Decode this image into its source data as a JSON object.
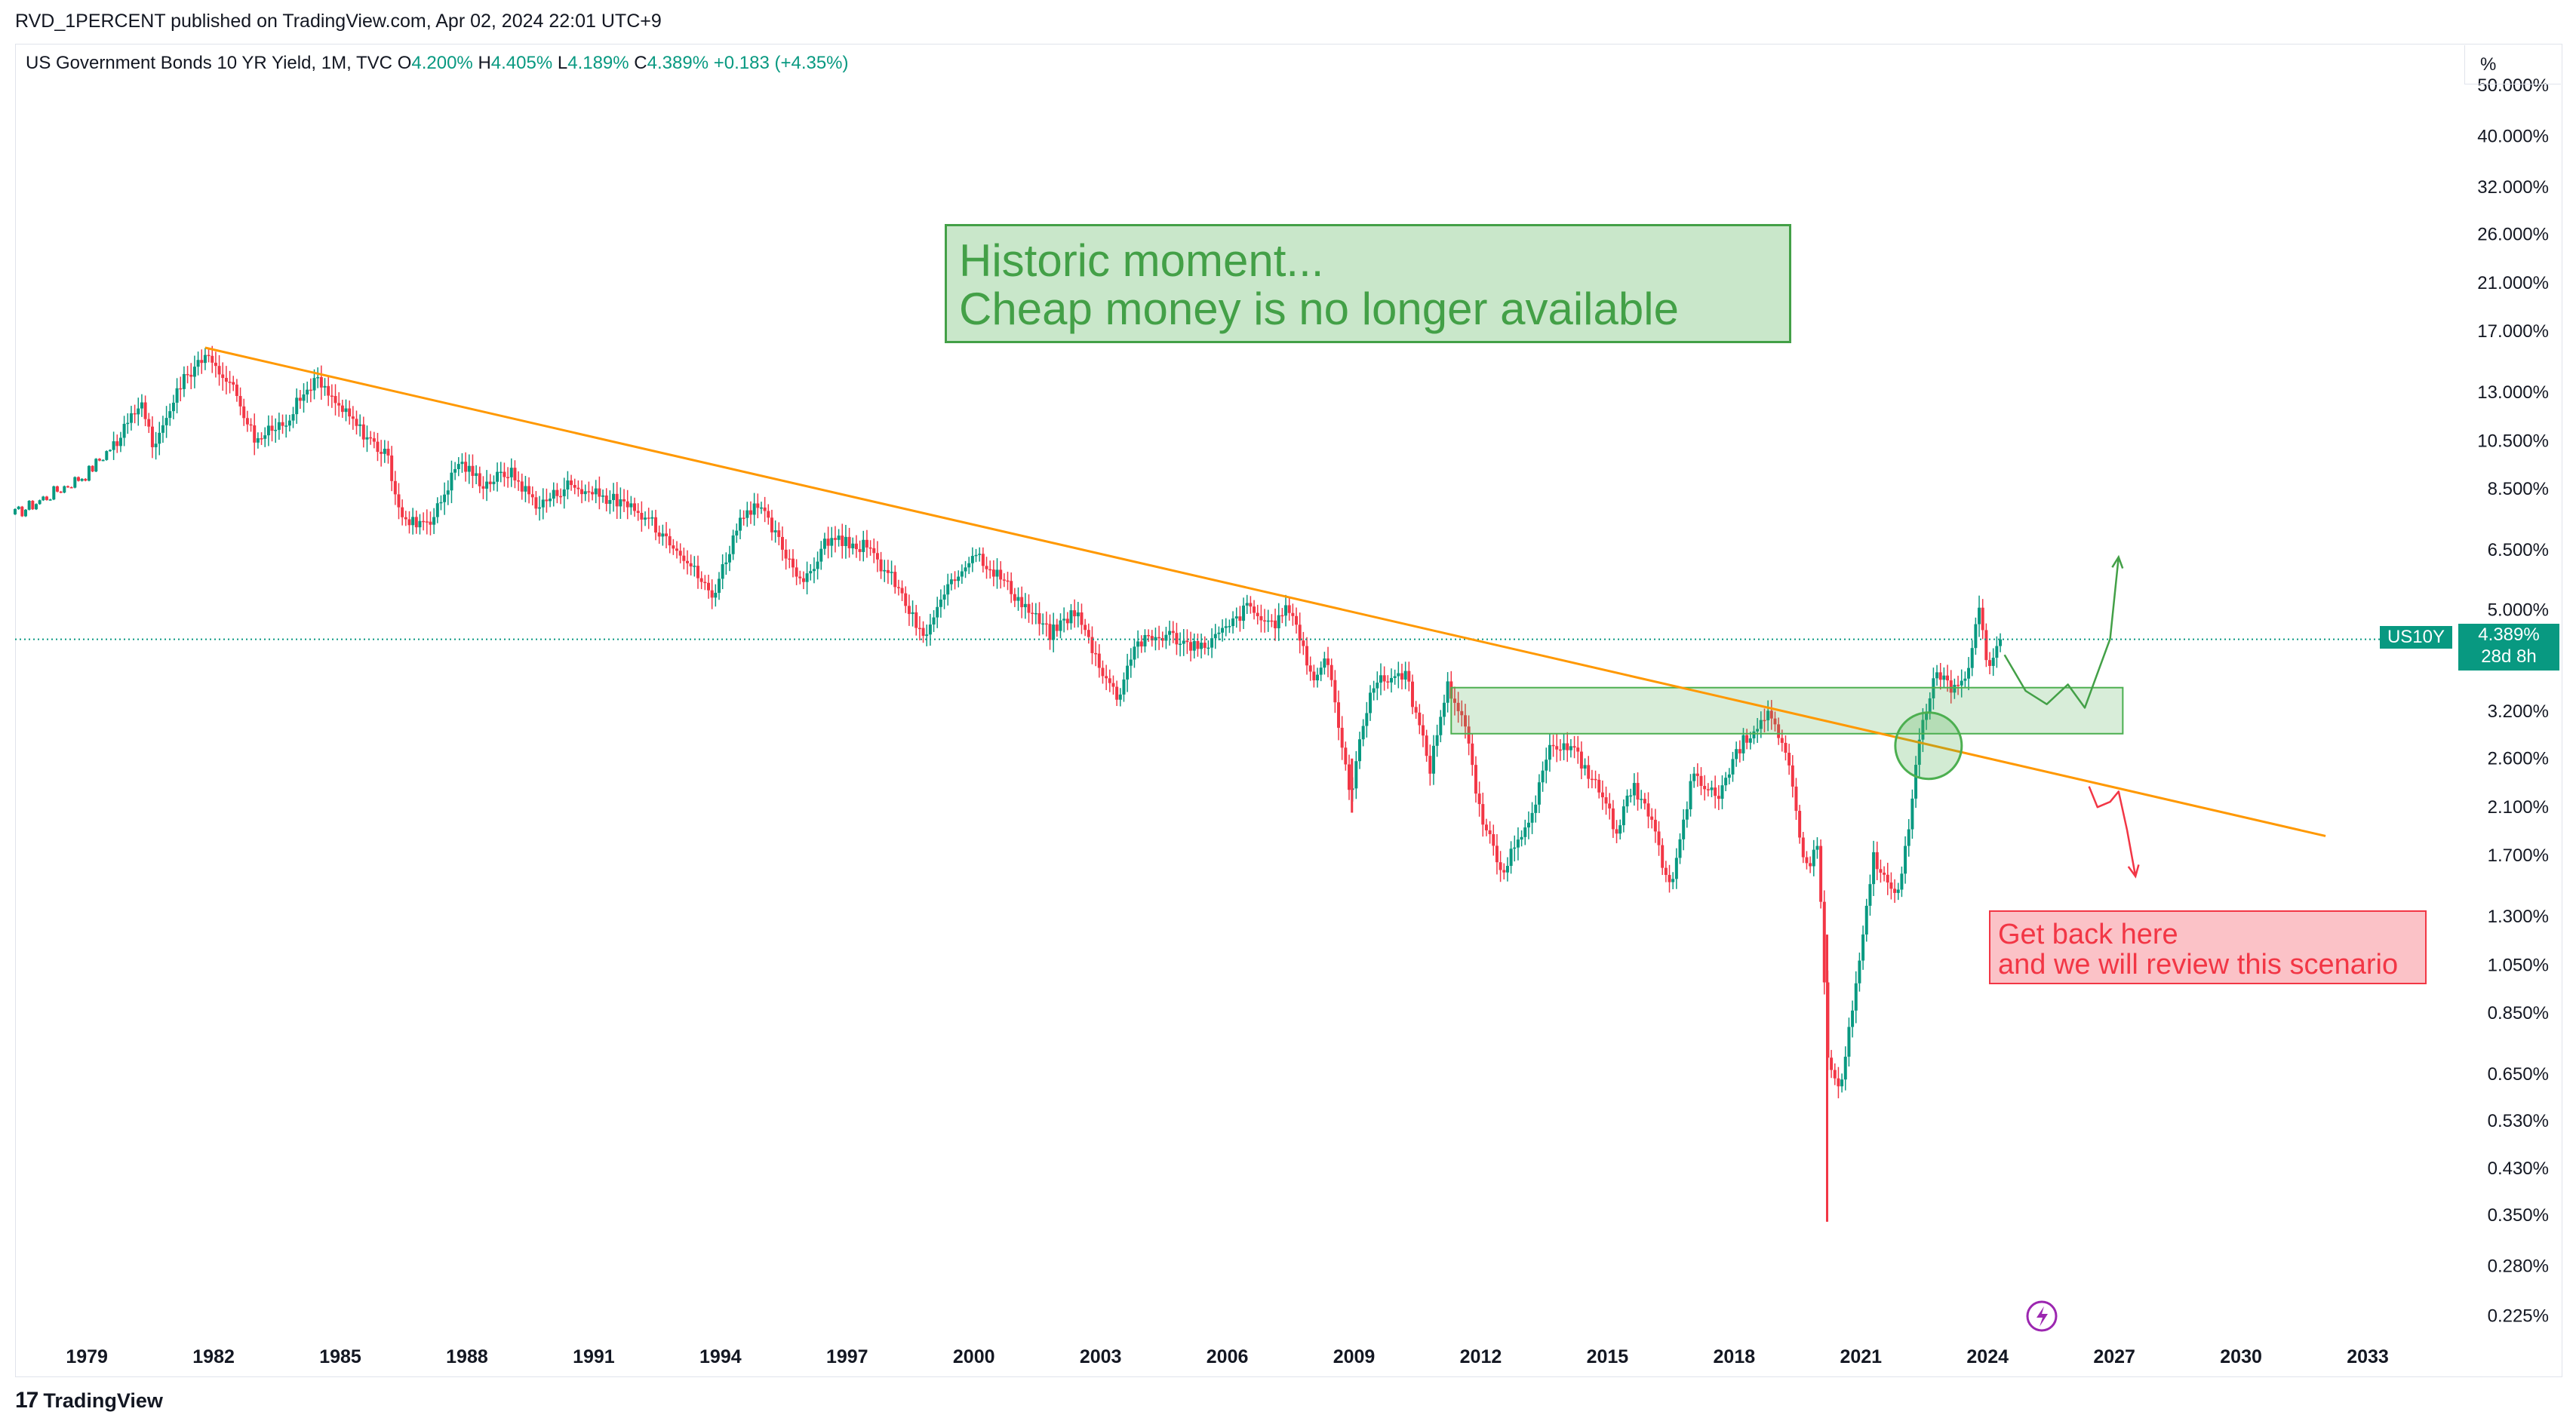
{
  "header": {
    "published_line": "RVD_1PERCENT published on TradingView.com, Apr 02, 2024 22:01 UTC+9"
  },
  "legend": {
    "symbol": "US Government Bonds 10 YR Yield, 1M, TVC",
    "open_key": "O",
    "open": "4.200%",
    "high_key": "H",
    "high": "4.405%",
    "low_key": "L",
    "low": "4.189%",
    "close_key": "C",
    "close": "4.389%",
    "change": "+0.183 (+4.35%)"
  },
  "axis_unit": "%",
  "price_tag": {
    "symbol": "US10Y",
    "value": "4.389%",
    "countdown": "28d 8h"
  },
  "annotations": {
    "green_box_lines": [
      "Historic moment...",
      "Cheap money is no longer available"
    ],
    "red_box_lines": [
      "Get back here",
      "and we will review this scenario"
    ]
  },
  "footer": {
    "brand": "TradingView"
  },
  "colors": {
    "up": "#089981",
    "down": "#f23645",
    "trendline": "#ff9800",
    "zone": "#4caf50",
    "text": "#131722",
    "grid_border": "#e0e3eb",
    "lightning": "#9c27b0"
  },
  "chart_data": {
    "type": "candlestick",
    "title": "US Government Bonds 10 YR Yield, 1M, TVC",
    "y_scale": "log",
    "y_unit": "%",
    "y_ticks": [
      "50.000%",
      "40.000%",
      "32.000%",
      "26.000%",
      "21.000%",
      "17.000%",
      "13.000%",
      "10.500%",
      "8.500%",
      "6.500%",
      "5.000%",
      "3.200%",
      "2.600%",
      "2.100%",
      "1.700%",
      "1.300%",
      "1.050%",
      "0.850%",
      "0.650%",
      "0.530%",
      "0.430%",
      "0.350%",
      "0.280%",
      "0.225%"
    ],
    "x_ticks": [
      "1979",
      "1982",
      "1985",
      "1988",
      "1991",
      "1994",
      "1997",
      "2000",
      "2003",
      "2006",
      "2009",
      "2012",
      "2015",
      "2018",
      "2021",
      "2024",
      "2027",
      "2030",
      "2033"
    ],
    "x_range": [
      1977.3,
      2035.0
    ],
    "y_range": [
      0.2,
      54.0
    ],
    "last_price": 4.389,
    "path_points": [
      [
        1977.3,
        7.6
      ],
      [
        1979.0,
        9.1
      ],
      [
        1979.8,
        10.7
      ],
      [
        1980.3,
        12.5
      ],
      [
        1980.6,
        10.0
      ],
      [
        1981.1,
        13.0
      ],
      [
        1981.7,
        15.2
      ],
      [
        1982.3,
        14.0
      ],
      [
        1982.6,
        12.6
      ],
      [
        1983.0,
        10.5
      ],
      [
        1983.7,
        11.5
      ],
      [
        1984.4,
        13.8
      ],
      [
        1984.8,
        12.6
      ],
      [
        1985.4,
        11.2
      ],
      [
        1986.1,
        9.8
      ],
      [
        1986.5,
        7.3
      ],
      [
        1987.2,
        7.5
      ],
      [
        1987.8,
        9.6
      ],
      [
        1988.4,
        8.7
      ],
      [
        1989.0,
        9.2
      ],
      [
        1989.7,
        7.9
      ],
      [
        1990.4,
        8.7
      ],
      [
        1990.8,
        8.4
      ],
      [
        1991.5,
        8.1
      ],
      [
        1992.3,
        7.4
      ],
      [
        1993.0,
        6.6
      ],
      [
        1993.8,
        5.3
      ],
      [
        1994.4,
        7.2
      ],
      [
        1994.9,
        7.9
      ],
      [
        1995.5,
        6.5
      ],
      [
        1996.0,
        5.6
      ],
      [
        1996.5,
        6.8
      ],
      [
        1997.4,
        6.6
      ],
      [
        1998.1,
        5.7
      ],
      [
        1998.8,
        4.4
      ],
      [
        1999.3,
        5.3
      ],
      [
        2000.0,
        6.5
      ],
      [
        2000.6,
        5.8
      ],
      [
        2001.1,
        5.2
      ],
      [
        2001.8,
        4.5
      ],
      [
        2002.4,
        5.0
      ],
      [
        2003.0,
        3.9
      ],
      [
        2003.4,
        3.4
      ],
      [
        2003.8,
        4.3
      ],
      [
        2004.6,
        4.5
      ],
      [
        2005.3,
        4.2
      ],
      [
        2006.0,
        4.6
      ],
      [
        2006.5,
        5.1
      ],
      [
        2007.0,
        4.6
      ],
      [
        2007.5,
        5.1
      ],
      [
        2008.0,
        3.7
      ],
      [
        2008.4,
        4.0
      ],
      [
        2008.9,
        2.2
      ],
      [
        2009.4,
        3.6
      ],
      [
        2010.2,
        3.8
      ],
      [
        2010.8,
        2.5
      ],
      [
        2011.2,
        3.6
      ],
      [
        2011.6,
        3.1
      ],
      [
        2012.0,
        2.0
      ],
      [
        2012.5,
        1.6
      ],
      [
        2013.1,
        1.9
      ],
      [
        2013.7,
        2.8
      ],
      [
        2014.2,
        2.7
      ],
      [
        2014.9,
        2.2
      ],
      [
        2015.2,
        1.9
      ],
      [
        2015.6,
        2.3
      ],
      [
        2016.0,
        2.0
      ],
      [
        2016.5,
        1.45
      ],
      [
        2017.0,
        2.4
      ],
      [
        2017.6,
        2.2
      ],
      [
        2018.2,
        2.8
      ],
      [
        2018.8,
        3.2
      ],
      [
        2019.3,
        2.5
      ],
      [
        2019.7,
        1.6
      ],
      [
        2020.0,
        1.8
      ],
      [
        2020.2,
        0.7
      ],
      [
        2020.5,
        0.6
      ],
      [
        2021.0,
        1.1
      ],
      [
        2021.3,
        1.7
      ],
      [
        2021.8,
        1.4
      ],
      [
        2022.1,
        1.8
      ],
      [
        2022.4,
        2.9
      ],
      [
        2022.8,
        3.9
      ],
      [
        2023.1,
        3.5
      ],
      [
        2023.5,
        3.8
      ],
      [
        2023.8,
        4.9
      ],
      [
        2024.0,
        3.9
      ],
      [
        2024.3,
        4.389
      ]
    ],
    "trendline": {
      "from": [
        1981.8,
        15.8
      ],
      "to": [
        2032.0,
        1.85
      ]
    },
    "zone": {
      "x": [
        2011.3,
        2027.2
      ],
      "y": [
        2.9,
        3.55
      ]
    },
    "circle": {
      "center": [
        2022.6,
        2.75
      ]
    },
    "scenario_up": [
      [
        2024.4,
        4.1
      ],
      [
        2024.9,
        3.5
      ],
      [
        2025.4,
        3.3
      ],
      [
        2025.9,
        3.6
      ],
      [
        2026.3,
        3.25
      ],
      [
        2026.9,
        4.4
      ],
      [
        2027.1,
        6.3
      ]
    ],
    "scenario_down": [
      [
        2026.4,
        2.3
      ],
      [
        2026.6,
        2.1
      ],
      [
        2026.9,
        2.15
      ],
      [
        2027.1,
        2.25
      ],
      [
        2027.3,
        1.9
      ],
      [
        2027.5,
        1.55
      ]
    ]
  }
}
